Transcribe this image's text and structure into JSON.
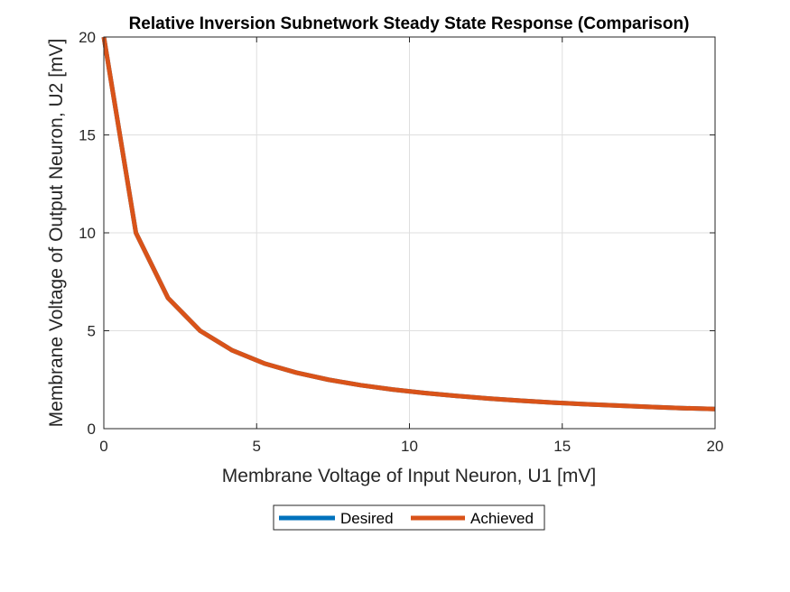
{
  "chart_data": {
    "type": "line",
    "title": "Relative Inversion Subnetwork Steady State Response (Comparison)",
    "xlabel": "Membrane Voltage of Input Neuron, U1 [mV]",
    "ylabel": "Membrane Voltage of Output Neuron, U2 [mV]",
    "xlim": [
      0,
      20
    ],
    "ylim": [
      0,
      20
    ],
    "xticks": [
      "0",
      "5",
      "10",
      "15",
      "20"
    ],
    "yticks": [
      "0",
      "5",
      "10",
      "15",
      "20"
    ],
    "grid": true,
    "legend": {
      "position": "bottom-center",
      "orientation": "horizontal"
    },
    "x": [
      0,
      1.05,
      2.1,
      3.15,
      4.2,
      5.25,
      6.3,
      7.35,
      8.4,
      9.45,
      10.5,
      11.55,
      12.6,
      13.65,
      14.7,
      15.75,
      16.8,
      17.85,
      18.9,
      20
    ],
    "series": [
      {
        "name": "Desired",
        "color": "#0072BD",
        "values": [
          20,
          10,
          6.67,
          5,
          4,
          3.33,
          2.86,
          2.5,
          2.22,
          2,
          1.82,
          1.67,
          1.54,
          1.43,
          1.33,
          1.25,
          1.18,
          1.11,
          1.05,
          1
        ]
      },
      {
        "name": "Achieved",
        "color": "#D95319",
        "values": [
          20,
          10,
          6.67,
          5,
          4,
          3.33,
          2.86,
          2.5,
          2.22,
          2,
          1.82,
          1.67,
          1.54,
          1.43,
          1.33,
          1.25,
          1.18,
          1.11,
          1.05,
          1
        ]
      }
    ]
  }
}
